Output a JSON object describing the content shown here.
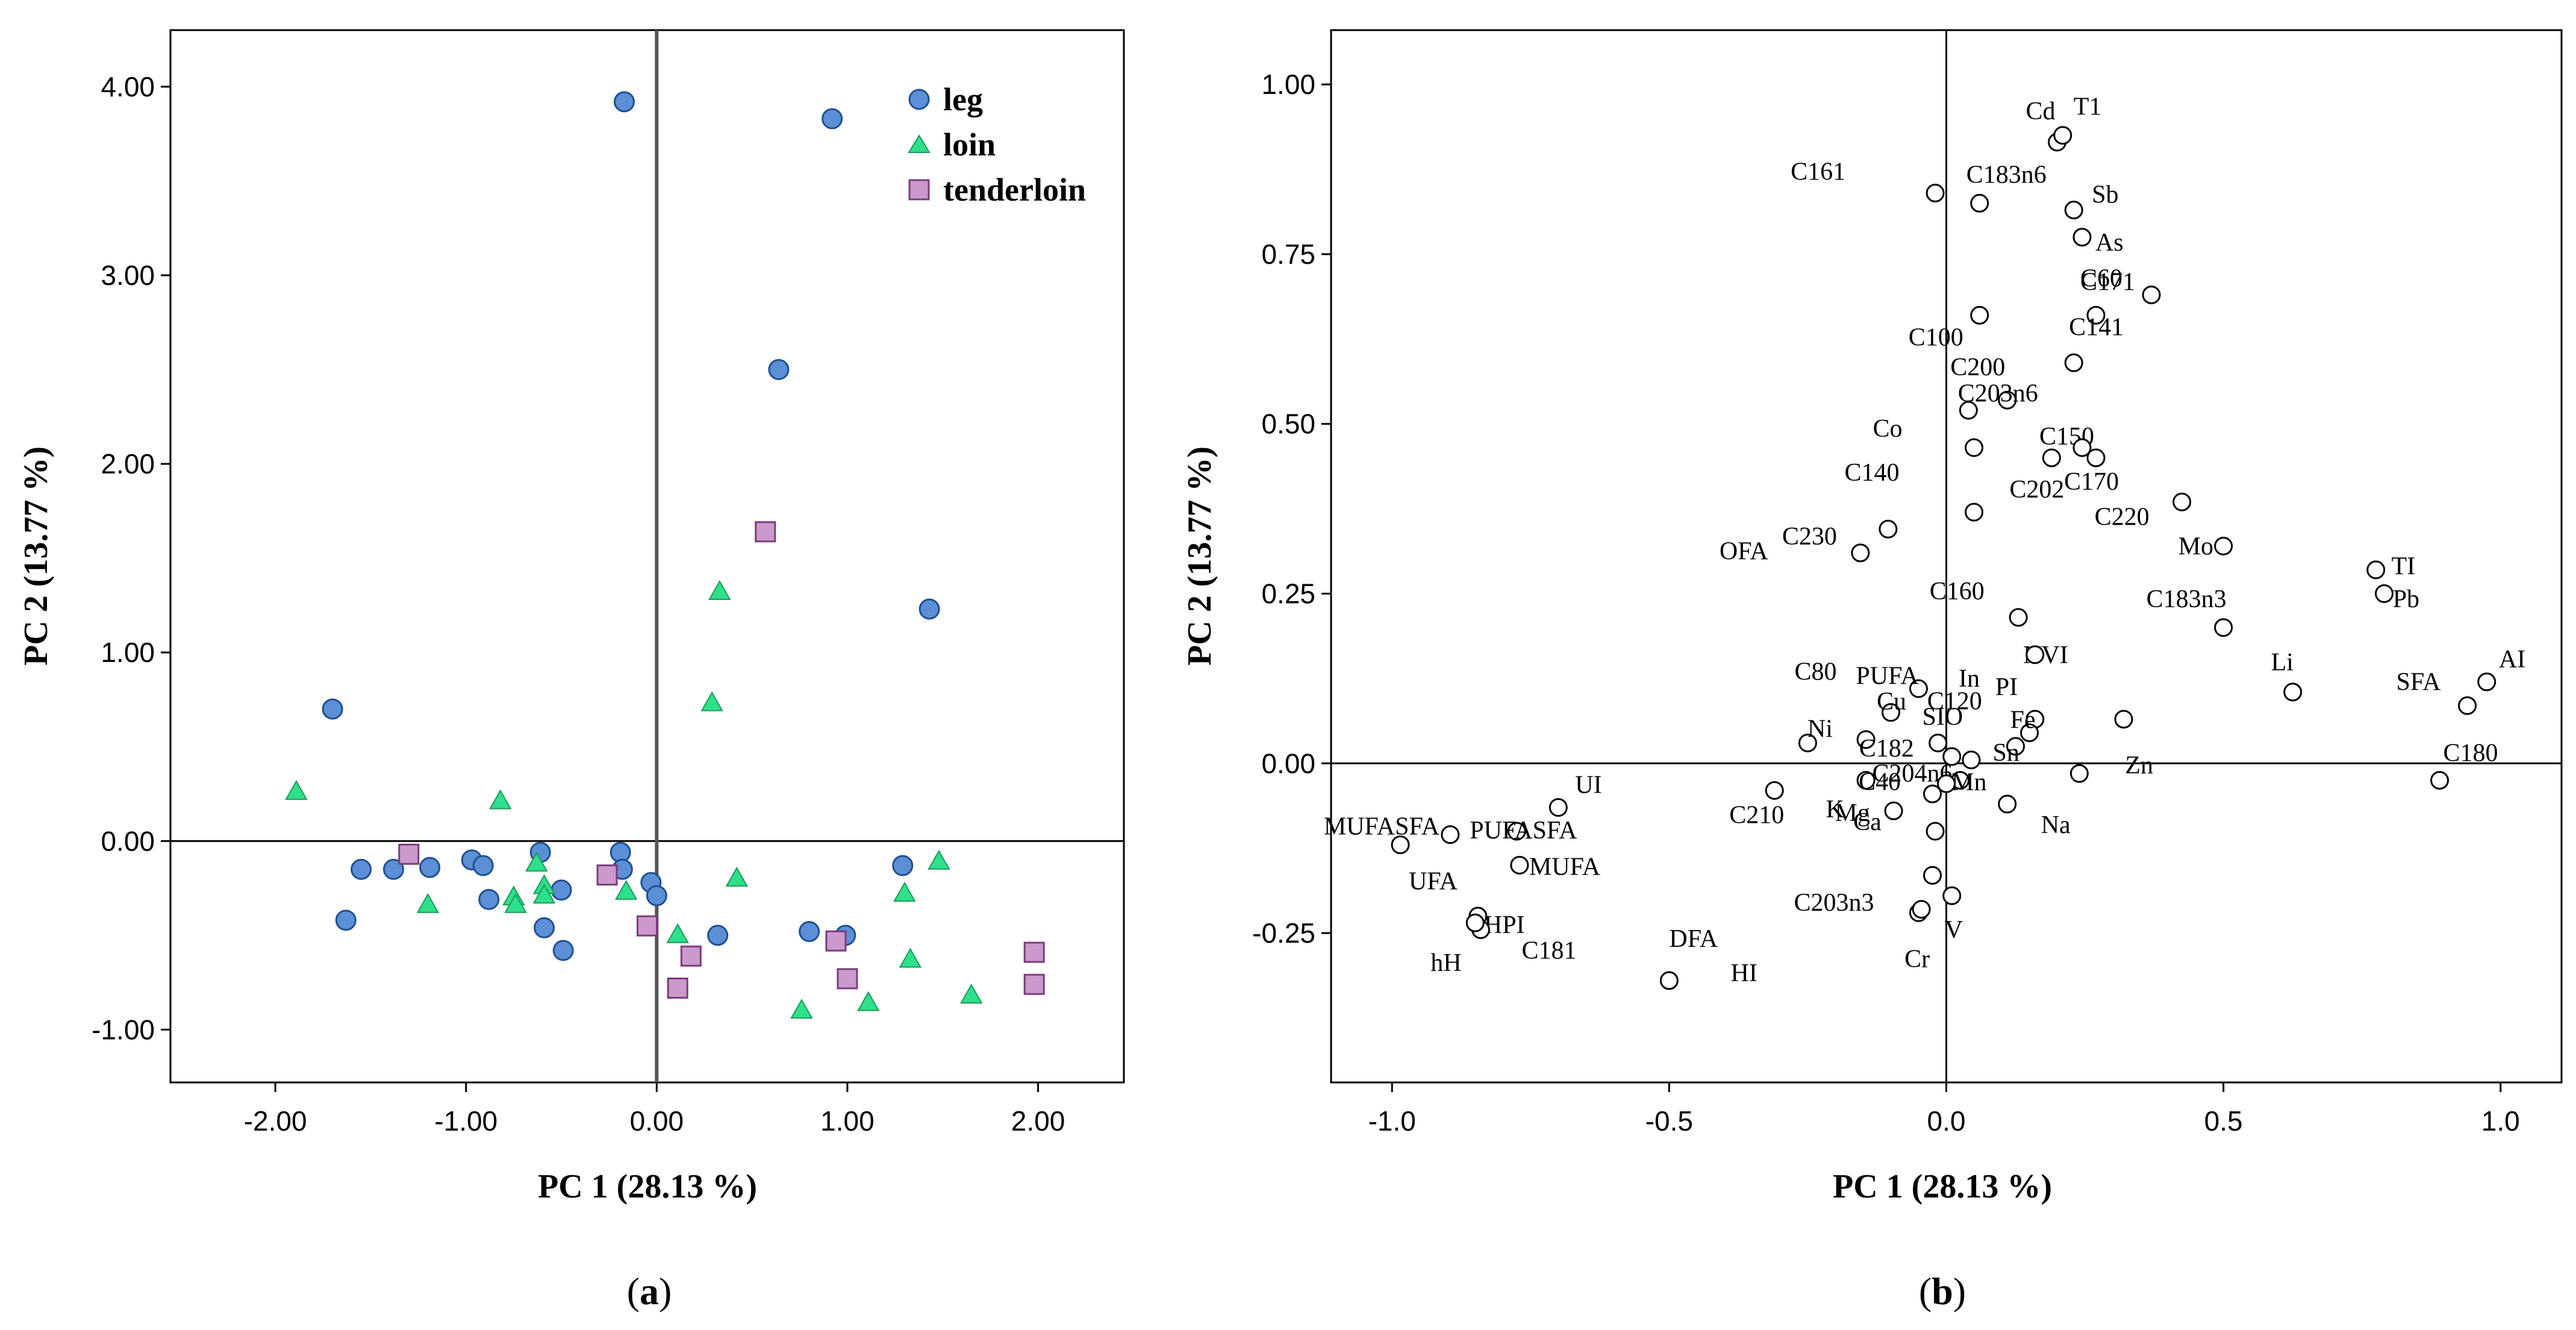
{
  "chart_data": [
    {
      "type": "scatter",
      "panel_label": "a",
      "title": "",
      "xlabel": "PC 1 (28.13 %)",
      "ylabel": "PC 2 (13.77 %)",
      "xlim": [
        -2.55,
        2.45
      ],
      "ylim": [
        -1.28,
        4.3
      ],
      "xticks": [
        -2.0,
        -1.0,
        0.0,
        1.0,
        2.0
      ],
      "xtick_labels": [
        "-2.00",
        "-1.00",
        "0.00",
        "1.00",
        "2.00"
      ],
      "yticks": [
        -1.0,
        0.0,
        1.0,
        2.0,
        3.0,
        4.0
      ],
      "ytick_labels": [
        "-1.00",
        "0.00",
        "1.00",
        "2.00",
        "3.00",
        "4.00"
      ],
      "legend_position": "top-right",
      "series": [
        {
          "name": "leg",
          "marker": "circle",
          "color": "#5b8fd6",
          "points": [
            [
              -0.17,
              3.92
            ],
            [
              0.92,
              3.83
            ],
            [
              0.64,
              2.5
            ],
            [
              1.43,
              1.23
            ],
            [
              -1.7,
              0.7
            ],
            [
              -1.55,
              -0.15
            ],
            [
              -1.63,
              -0.42
            ],
            [
              -1.38,
              -0.15
            ],
            [
              -1.19,
              -0.14
            ],
            [
              -0.97,
              -0.1
            ],
            [
              -0.91,
              -0.13
            ],
            [
              -0.88,
              -0.31
            ],
            [
              -0.61,
              -0.06
            ],
            [
              -0.59,
              -0.46
            ],
            [
              -0.5,
              -0.26
            ],
            [
              -0.49,
              -0.58
            ],
            [
              -0.19,
              -0.06
            ],
            [
              -0.18,
              -0.15
            ],
            [
              -0.03,
              -0.22
            ],
            [
              0.0,
              -0.29
            ],
            [
              0.32,
              -0.5
            ],
            [
              0.8,
              -0.48
            ],
            [
              0.99,
              -0.5
            ],
            [
              1.29,
              -0.13
            ]
          ]
        },
        {
          "name": "loin",
          "marker": "triangle",
          "color": "#2ee08a",
          "points": [
            [
              -1.89,
              0.26
            ],
            [
              -0.82,
              0.21
            ],
            [
              0.33,
              1.32
            ],
            [
              0.29,
              0.73
            ],
            [
              -1.2,
              -0.34
            ],
            [
              -0.75,
              -0.3
            ],
            [
              -0.74,
              -0.34
            ],
            [
              -0.63,
              -0.12
            ],
            [
              -0.59,
              -0.24
            ],
            [
              -0.59,
              -0.29
            ],
            [
              -0.16,
              -0.27
            ],
            [
              0.42,
              -0.2
            ],
            [
              0.11,
              -0.5
            ],
            [
              1.48,
              -0.11
            ],
            [
              1.3,
              -0.28
            ],
            [
              1.33,
              -0.63
            ],
            [
              1.65,
              -0.82
            ],
            [
              1.11,
              -0.86
            ],
            [
              0.76,
              -0.9
            ]
          ]
        },
        {
          "name": "tenderloin",
          "marker": "square",
          "color": "#cc99cc",
          "points": [
            [
              0.57,
              1.64
            ],
            [
              -1.3,
              -0.07
            ],
            [
              -0.26,
              -0.18
            ],
            [
              -0.05,
              -0.45
            ],
            [
              0.18,
              -0.61
            ],
            [
              0.11,
              -0.78
            ],
            [
              0.94,
              -0.53
            ],
            [
              1.0,
              -0.73
            ],
            [
              1.98,
              -0.59
            ],
            [
              1.98,
              -0.76
            ]
          ]
        }
      ]
    },
    {
      "type": "scatter",
      "panel_label": "b",
      "title": "",
      "xlabel": "PC 1 (28.13 %)",
      "ylabel": "PC 2 (13.77 %)",
      "xlim": [
        -1.11,
        1.11
      ],
      "ylim": [
        -0.47,
        1.08
      ],
      "xticks": [
        -1.0,
        -0.5,
        0.0,
        0.5,
        1.0
      ],
      "xtick_labels": [
        "-1.0",
        "-0.5",
        "0.0",
        "0.5",
        "1.0"
      ],
      "yticks": [
        -0.25,
        0.0,
        0.25,
        0.5,
        0.75,
        1.0
      ],
      "ytick_labels": [
        "-0.25",
        "0.00",
        "0.25",
        "0.50",
        "0.75",
        "1.00"
      ],
      "points": [
        {
          "label": "Cd",
          "x": 0.2,
          "y": 0.915
        },
        {
          "label": "T1",
          "x": 0.21,
          "y": 0.925
        },
        {
          "label": "C161",
          "x": -0.02,
          "y": 0.84
        },
        {
          "label": "C183n6",
          "x": 0.06,
          "y": 0.825
        },
        {
          "label": "Sb",
          "x": 0.23,
          "y": 0.815
        },
        {
          "label": "As",
          "x": 0.245,
          "y": 0.775
        },
        {
          "label": "C100",
          "x": 0.06,
          "y": 0.66
        },
        {
          "label": "C171",
          "x": 0.27,
          "y": 0.66
        },
        {
          "label": "C60",
          "x": 0.37,
          "y": 0.69
        },
        {
          "label": "C141",
          "x": 0.23,
          "y": 0.59
        },
        {
          "label": "C200",
          "x": 0.04,
          "y": 0.52
        },
        {
          "label": "C203n6",
          "x": 0.11,
          "y": 0.535
        },
        {
          "label": "Co",
          "x": 0.05,
          "y": 0.465
        },
        {
          "label": "C202",
          "x": 0.19,
          "y": 0.45
        },
        {
          "label": "C150",
          "x": 0.27,
          "y": 0.45
        },
        {
          "label": "C170",
          "x": 0.245,
          "y": 0.465
        },
        {
          "label": "C220",
          "x": 0.425,
          "y": 0.385
        },
        {
          "label": "C140",
          "x": 0.05,
          "y": 0.37
        },
        {
          "label": "Mo",
          "x": 0.5,
          "y": 0.32
        },
        {
          "label": "OFA",
          "x": -0.105,
          "y": 0.345
        },
        {
          "label": "C230",
          "x": -0.155,
          "y": 0.31
        },
        {
          "label": "Pb",
          "x": 0.775,
          "y": 0.285
        },
        {
          "label": "TI",
          "x": 0.79,
          "y": 0.25
        },
        {
          "label": "NVI",
          "x": 0.13,
          "y": 0.215
        },
        {
          "label": "C183n3",
          "x": 0.5,
          "y": 0.2
        },
        {
          "label": "C160",
          "x": 0.16,
          "y": 0.16
        },
        {
          "label": "Li",
          "x": 0.625,
          "y": 0.105
        },
        {
          "label": "AI",
          "x": 0.975,
          "y": 0.12
        },
        {
          "label": "SFA",
          "x": 0.94,
          "y": 0.085
        },
        {
          "label": "SIO",
          "x": -0.05,
          "y": 0.11
        },
        {
          "label": "C80",
          "x": -0.1,
          "y": 0.075
        },
        {
          "label": "PI",
          "x": 0.16,
          "y": 0.065
        },
        {
          "label": "In",
          "x": 0.32,
          "y": 0.065
        },
        {
          "label": "PUFA",
          "x": -0.25,
          "y": 0.03
        },
        {
          "label": "Cu",
          "x": -0.145,
          "y": 0.035
        },
        {
          "label": "C120",
          "x": -0.015,
          "y": 0.03
        },
        {
          "label": "Ni",
          "x": 0.045,
          "y": 0.005
        },
        {
          "label": "C182",
          "x": 0.01,
          "y": 0.01
        },
        {
          "label": "Fe",
          "x": 0.15,
          "y": 0.045
        },
        {
          "label": "Sn",
          "x": 0.125,
          "y": 0.025
        },
        {
          "label": "Zn",
          "x": 0.24,
          "y": -0.015
        },
        {
          "label": "C180",
          "x": 0.89,
          "y": -0.025
        },
        {
          "label": "C210",
          "x": -0.31,
          "y": -0.04
        },
        {
          "label": "C40",
          "x": -0.145,
          "y": -0.025
        },
        {
          "label": "C204n6",
          "x": 0.025,
          "y": -0.025
        },
        {
          "label": "Mg",
          "x": -0.025,
          "y": -0.045
        },
        {
          "label": "K",
          "x": 0.0,
          "y": -0.03
        },
        {
          "label": "Mn",
          "x": -0.02,
          "y": -0.1
        },
        {
          "label": "Na",
          "x": 0.11,
          "y": -0.06
        },
        {
          "label": "UI",
          "x": -0.7,
          "y": -0.065
        },
        {
          "label": "MUFASFA",
          "x": -0.895,
          "y": -0.105
        },
        {
          "label": "PUFASFA",
          "x": -0.775,
          "y": -0.1
        },
        {
          "label": "Ca",
          "x": -0.095,
          "y": -0.07
        },
        {
          "label": "UFA",
          "x": -0.985,
          "y": -0.12
        },
        {
          "label": "MUFA",
          "x": -0.77,
          "y": -0.15
        },
        {
          "label": "C203n3",
          "x": -0.025,
          "y": -0.165
        },
        {
          "label": "HPI",
          "x": -0.845,
          "y": -0.225
        },
        {
          "label": "C181",
          "x": -0.84,
          "y": -0.245
        },
        {
          "label": "hH",
          "x": -0.85,
          "y": -0.235
        },
        {
          "label": "HI",
          "x": -0.05,
          "y": -0.22
        },
        {
          "label": "V",
          "x": 0.01,
          "y": -0.195
        },
        {
          "label": "Cr",
          "x": -0.045,
          "y": -0.215
        },
        {
          "label": "DFA",
          "x": -0.5,
          "y": -0.32
        }
      ]
    }
  ],
  "captions": {
    "a": "(a)",
    "b": "(b)"
  }
}
